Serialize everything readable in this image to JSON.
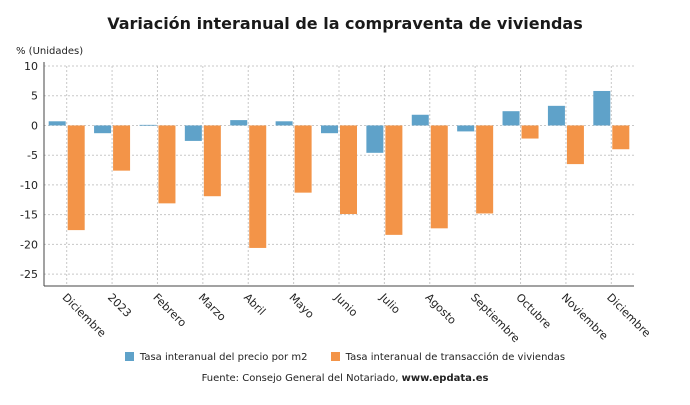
{
  "chart_data": {
    "type": "bar",
    "title": "Variación interanual de la compraventa de viviendas",
    "ylabel": "% (Unidades)",
    "xlabel": "",
    "ylim": [
      -27,
      10
    ],
    "yticks": [
      10,
      5,
      0,
      -5,
      -10,
      -15,
      -20,
      -25
    ],
    "grid": true,
    "legend_position": "bottom",
    "categories": [
      "Diciembre",
      "2023",
      "Febrero",
      "Marzo",
      "Abril",
      "Mayo",
      "Junio",
      "Julio",
      "Agosto",
      "Septiembre",
      "Octubre",
      "Noviembre",
      "Diciembre"
    ],
    "series": [
      {
        "name": "Tasa interanual del precio por m2",
        "color": "#5fa2c9",
        "values": [
          0.7,
          -1.3,
          0.1,
          -2.6,
          0.9,
          0.7,
          -1.3,
          -4.6,
          1.8,
          -1.0,
          2.4,
          3.3,
          5.8
        ]
      },
      {
        "name": "Tasa interanual de transacción de viviendas",
        "color": "#f39448",
        "values": [
          -17.6,
          -7.6,
          -13.1,
          -11.9,
          -20.6,
          -11.3,
          -14.9,
          -18.4,
          -17.3,
          -14.8,
          -2.2,
          -6.5,
          -4.0
        ]
      }
    ]
  },
  "source": {
    "prefix": "Fuente: Consejo General del Notariado, ",
    "site": "www.epdata.es"
  }
}
